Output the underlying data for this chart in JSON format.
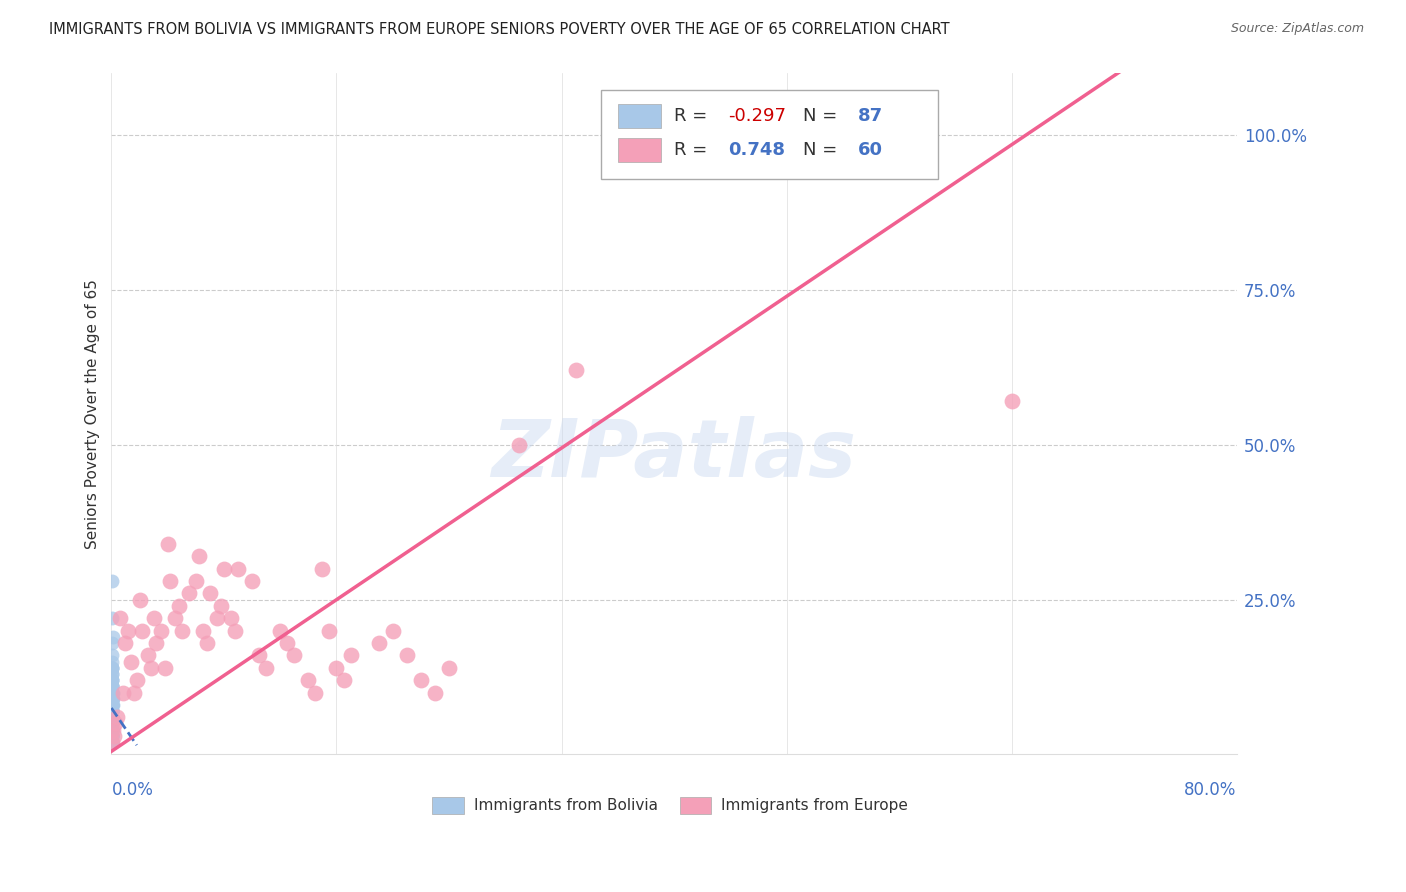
{
  "title": "IMMIGRANTS FROM BOLIVIA VS IMMIGRANTS FROM EUROPE SENIORS POVERTY OVER THE AGE OF 65 CORRELATION CHART",
  "source": "Source: ZipAtlas.com",
  "ylabel": "Seniors Poverty Over the Age of 65",
  "watermark": "ZIPatlas",
  "bolivia_R": -0.297,
  "bolivia_N": 87,
  "europe_R": 0.748,
  "europe_N": 60,
  "bolivia_color": "#a8c8e8",
  "europe_color": "#f4a0b8",
  "bolivia_line_color": "#4472c4",
  "europe_line_color": "#f06090",
  "bolivia_scatter_x": [
    0.0002,
    0.0003,
    0.0005,
    0.0002,
    0.0004,
    0.0006,
    0.0007,
    0.0002,
    0.0005,
    0.0008,
    0.0003,
    0.0002,
    0.0004,
    0.0006,
    0.0003,
    0.0002,
    0.0005,
    0.0007,
    0.0003,
    0.0001,
    0.0006,
    0.0008,
    0.0004,
    0.0003,
    0.0001,
    0.0003,
    0.0006,
    0.0004,
    0.0002,
    0.0003,
    0.0007,
    0.0004,
    0.0006,
    0.0001,
    0.0003,
    0.0004,
    0.0002,
    0.0003,
    0.0006,
    0.0004,
    0.0003,
    0.0001,
    0.0004,
    0.0007,
    0.0003,
    0.0006,
    0.0001,
    0.0004,
    0.0003,
    0.0001,
    0.0006,
    0.0004,
    0.0009,
    0.0003,
    0.0001,
    0.0004,
    0.0003,
    0.0006,
    0.0001,
    0.0004,
    0.0007,
    0.0003,
    0.0001,
    0.0006,
    0.0004,
    0.0003,
    0.0009,
    0.0001,
    0.0004,
    0.0003,
    0.0006,
    0.0001,
    0.0004,
    0.0003,
    0.0001,
    0.0006,
    0.0003,
    0.0004,
    0.0001,
    0.0003,
    0.0004,
    0.0006,
    0.0003,
    0.0001,
    0.0004,
    0.0003,
    0.0006
  ],
  "bolivia_scatter_y": [
    0.22,
    0.28,
    0.1,
    0.14,
    0.12,
    0.08,
    0.18,
    0.06,
    0.1,
    0.09,
    0.07,
    0.05,
    0.11,
    0.13,
    0.07,
    0.04,
    0.09,
    0.15,
    0.08,
    0.03,
    0.12,
    0.1,
    0.07,
    0.06,
    0.03,
    0.05,
    0.11,
    0.08,
    0.04,
    0.06,
    0.14,
    0.09,
    0.1,
    0.03,
    0.07,
    0.08,
    0.04,
    0.06,
    0.13,
    0.09,
    0.05,
    0.03,
    0.08,
    0.16,
    0.06,
    0.11,
    0.03,
    0.09,
    0.05,
    0.02,
    0.12,
    0.08,
    0.19,
    0.05,
    0.03,
    0.07,
    0.05,
    0.1,
    0.03,
    0.08,
    0.14,
    0.05,
    0.02,
    0.11,
    0.07,
    0.05,
    0.08,
    0.02,
    0.06,
    0.04,
    0.09,
    0.02,
    0.07,
    0.04,
    0.02,
    0.1,
    0.04,
    0.06,
    0.02,
    0.04,
    0.07,
    0.09,
    0.04,
    0.02,
    0.06,
    0.04,
    0.09
  ],
  "europe_scatter_x": [
    0.0005,
    0.001,
    0.0015,
    0.0025,
    0.004,
    0.006,
    0.008,
    0.01,
    0.012,
    0.014,
    0.016,
    0.018,
    0.02,
    0.022,
    0.026,
    0.028,
    0.03,
    0.032,
    0.035,
    0.038,
    0.04,
    0.042,
    0.045,
    0.048,
    0.05,
    0.055,
    0.06,
    0.062,
    0.065,
    0.068,
    0.07,
    0.075,
    0.078,
    0.08,
    0.085,
    0.088,
    0.09,
    0.1,
    0.105,
    0.11,
    0.12,
    0.125,
    0.13,
    0.14,
    0.145,
    0.15,
    0.155,
    0.16,
    0.165,
    0.17,
    0.19,
    0.2,
    0.21,
    0.22,
    0.23,
    0.24,
    0.29,
    0.33,
    0.55,
    0.64
  ],
  "europe_scatter_y": [
    0.02,
    0.04,
    0.03,
    0.05,
    0.06,
    0.22,
    0.1,
    0.18,
    0.2,
    0.15,
    0.1,
    0.12,
    0.25,
    0.2,
    0.16,
    0.14,
    0.22,
    0.18,
    0.2,
    0.14,
    0.34,
    0.28,
    0.22,
    0.24,
    0.2,
    0.26,
    0.28,
    0.32,
    0.2,
    0.18,
    0.26,
    0.22,
    0.24,
    0.3,
    0.22,
    0.2,
    0.3,
    0.28,
    0.16,
    0.14,
    0.2,
    0.18,
    0.16,
    0.12,
    0.1,
    0.3,
    0.2,
    0.14,
    0.12,
    0.16,
    0.18,
    0.2,
    0.16,
    0.12,
    0.1,
    0.14,
    0.5,
    0.62,
    1.0,
    0.57
  ],
  "xlim": [
    0.0,
    0.8
  ],
  "ylim": [
    0.0,
    1.1
  ],
  "grid_color": "#cccccc",
  "background_color": "#ffffff"
}
